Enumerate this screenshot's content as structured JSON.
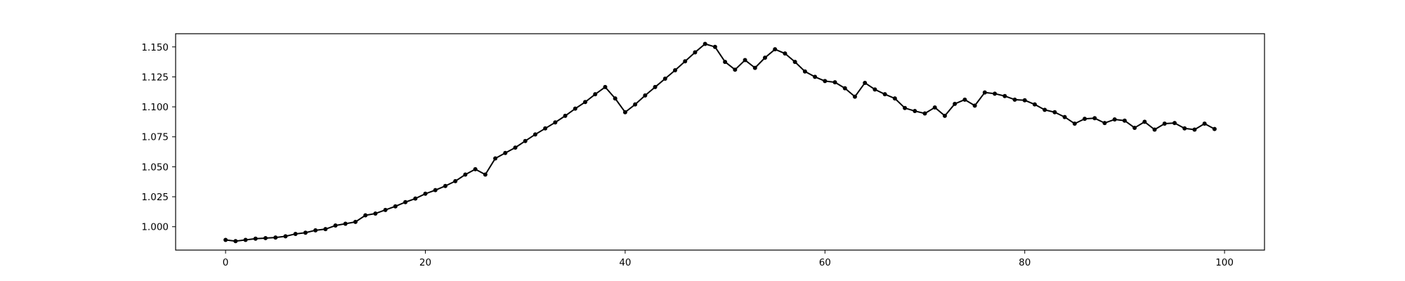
{
  "chart_data": {
    "type": "line",
    "title": "",
    "xlabel": "",
    "ylabel": "",
    "xlim": [
      -5,
      104
    ],
    "ylim": [
      0.9805,
      1.161
    ],
    "grid": false,
    "legend": "none",
    "line_color": "#000000",
    "marker": "circle",
    "x_ticks": [
      0,
      20,
      40,
      60,
      80,
      100
    ],
    "x_tick_labels": [
      "0",
      "20",
      "40",
      "60",
      "80",
      "100"
    ],
    "y_ticks": [
      1.0,
      1.025,
      1.05,
      1.075,
      1.1,
      1.125,
      1.15
    ],
    "y_tick_labels": [
      "1.000",
      "1.025",
      "1.050",
      "1.075",
      "1.100",
      "1.125",
      "1.150"
    ],
    "series": [
      {
        "x": [
          0,
          1,
          2,
          3,
          4,
          5,
          6,
          7,
          8,
          9,
          10,
          11,
          12,
          13,
          14,
          15,
          16,
          17,
          18,
          19,
          20,
          21,
          22,
          23,
          24,
          25,
          26,
          27,
          28,
          29,
          30,
          31,
          32,
          33,
          34,
          35,
          36,
          37,
          38,
          39,
          40,
          41,
          42,
          43,
          44,
          45,
          46,
          47,
          48,
          49,
          50,
          51,
          52,
          53,
          54,
          55,
          56,
          57,
          58,
          59,
          60,
          61,
          62,
          63,
          64,
          65,
          66,
          67,
          68,
          69,
          70,
          71,
          72,
          73,
          74,
          75,
          76,
          77,
          78,
          79,
          80,
          81,
          82,
          83,
          84,
          85,
          86,
          87,
          88,
          89,
          90,
          91,
          92,
          93,
          94,
          95,
          96,
          97,
          98,
          99
        ],
        "values": [
          0.989,
          0.988,
          0.989,
          0.99,
          0.9905,
          0.991,
          0.992,
          0.994,
          0.995,
          0.997,
          0.998,
          1.001,
          1.0025,
          1.004,
          1.0095,
          1.011,
          1.014,
          1.017,
          1.0205,
          1.0235,
          1.0275,
          1.0305,
          1.034,
          1.038,
          1.0435,
          1.048,
          1.0435,
          1.057,
          1.0615,
          1.066,
          1.0715,
          1.077,
          1.082,
          1.087,
          1.0925,
          1.0985,
          1.104,
          1.1105,
          1.1165,
          1.107,
          1.0955,
          1.102,
          1.1095,
          1.1165,
          1.1235,
          1.1305,
          1.138,
          1.1455,
          1.1525,
          1.15,
          1.1375,
          1.131,
          1.139,
          1.1325,
          1.141,
          1.148,
          1.1445,
          1.1375,
          1.1295,
          1.125,
          1.1215,
          1.1205,
          1.1155,
          1.1085,
          1.12,
          1.1145,
          1.1105,
          1.107,
          1.099,
          1.0965,
          1.0945,
          1.0995,
          1.0925,
          1.1025,
          1.106,
          1.101,
          1.112,
          1.111,
          1.109,
          1.106,
          1.1055,
          1.102,
          1.0975,
          1.0955,
          1.0915,
          1.086,
          1.09,
          1.0905,
          1.0865,
          1.0895,
          1.0885,
          1.0825,
          1.0875,
          1.081,
          1.086,
          1.0865,
          1.082,
          1.081,
          1.086,
          1.0815
        ]
      }
    ]
  }
}
